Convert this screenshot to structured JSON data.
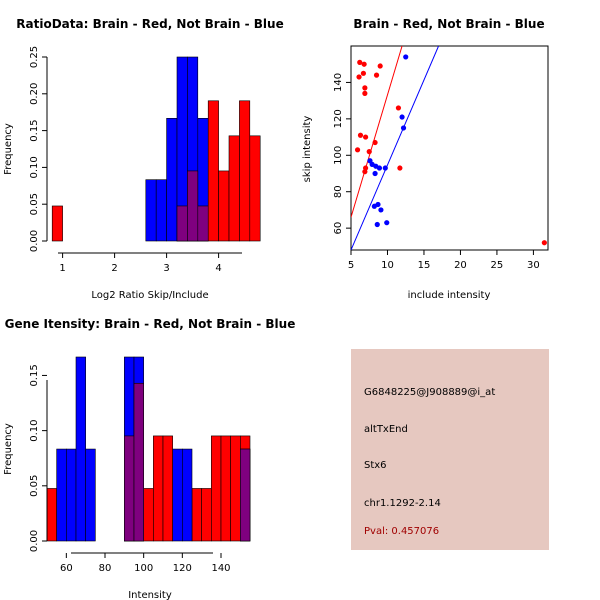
{
  "chart_data": [
    {
      "type": "histogram",
      "title": "RatioData: Brain - Red, Not Brain - Blue",
      "xlabel": "Log2 Ratio Skip/Include",
      "ylabel": "Frequency",
      "xlim": [
        0.7,
        4.7
      ],
      "ylim": [
        0,
        0.25
      ],
      "xticks": [
        "1",
        "2",
        "3",
        "4"
      ],
      "yticks": [
        "0.00",
        "0.05",
        "0.10",
        "0.15",
        "0.20",
        "0.25"
      ],
      "bin_width": 0.2,
      "series": [
        {
          "name": "Brain",
          "color": "#ff0000",
          "bars": [
            {
              "x0": 0.8,
              "v": 0.0476
            },
            {
              "x0": 3.2,
              "v": 0.0476
            },
            {
              "x0": 3.4,
              "v": 0.0952
            },
            {
              "x0": 3.6,
              "v": 0.0476
            },
            {
              "x0": 3.8,
              "v": 0.1905
            },
            {
              "x0": 4.0,
              "v": 0.0952
            },
            {
              "x0": 4.2,
              "v": 0.1429
            },
            {
              "x0": 4.4,
              "v": 0.1905
            },
            {
              "x0": 4.6,
              "v": 0.1429
            }
          ]
        },
        {
          "name": "Not Brain",
          "color": "#0000ff",
          "bars": [
            {
              "x0": 2.6,
              "v": 0.0833
            },
            {
              "x0": 2.8,
              "v": 0.0833
            },
            {
              "x0": 3.0,
              "v": 0.1667
            },
            {
              "x0": 3.2,
              "v": 0.25
            },
            {
              "x0": 3.4,
              "v": 0.25
            },
            {
              "x0": 3.6,
              "v": 0.1667
            }
          ]
        }
      ],
      "overlap_color": "#7f007f"
    },
    {
      "type": "scatter",
      "title": "Brain - Red, Not Brain - Blue",
      "xlabel": "include intensity",
      "ylabel": "skip intensity",
      "xlim": [
        5,
        32
      ],
      "ylim": [
        48,
        160
      ],
      "xticks": [
        "5",
        "10",
        "15",
        "20",
        "25",
        "30"
      ],
      "yticks": [
        "60",
        "80",
        "100",
        "120",
        "140"
      ],
      "series": [
        {
          "name": "Brain",
          "color": "#ff0000",
          "points": [
            [
              6.2,
              151
            ],
            [
              6.8,
              150
            ],
            [
              6.1,
              143
            ],
            [
              6.7,
              145
            ],
            [
              6.9,
              137
            ],
            [
              6.9,
              134
            ],
            [
              8.5,
              144
            ],
            [
              9.0,
              149
            ],
            [
              6.3,
              111
            ],
            [
              7.0,
              110
            ],
            [
              5.9,
              103
            ],
            [
              7.5,
              102
            ],
            [
              8.3,
              107
            ],
            [
              7.0,
              93
            ],
            [
              6.9,
              91
            ],
            [
              11.5,
              126
            ],
            [
              11.7,
              93
            ],
            [
              31.5,
              52
            ]
          ],
          "fit_line": [
            [
              5,
              66
            ],
            [
              12,
              160
            ]
          ]
        },
        {
          "name": "Not Brain",
          "color": "#0000ff",
          "points": [
            [
              12.5,
              154
            ],
            [
              12.0,
              121
            ],
            [
              12.2,
              115
            ],
            [
              7.6,
              97
            ],
            [
              7.9,
              95
            ],
            [
              8.4,
              94
            ],
            [
              8.9,
              93
            ],
            [
              9.7,
              93
            ],
            [
              8.3,
              90
            ],
            [
              8.2,
              72
            ],
            [
              8.7,
              73
            ],
            [
              9.1,
              70
            ],
            [
              8.6,
              62
            ],
            [
              9.9,
              63
            ]
          ],
          "fit_line": [
            [
              5,
              48
            ],
            [
              17,
              160
            ]
          ]
        }
      ]
    },
    {
      "type": "histogram",
      "title": "Gene Itensity: Brain - Red, Not Brain - Blue",
      "xlabel": "Intensity",
      "ylabel": "Frequency",
      "xlim": [
        50,
        155
      ],
      "ylim": [
        0,
        0.1667
      ],
      "xticks": [
        "60",
        "80",
        "100",
        "120",
        "140"
      ],
      "yticks": [
        "0.00",
        "0.05",
        "0.10",
        "0.15"
      ],
      "bin_width": 5,
      "series": [
        {
          "name": "Brain",
          "color": "#ff0000",
          "bars": [
            {
              "x0": 50,
              "v": 0.0476
            },
            {
              "x0": 90,
              "v": 0.0952
            },
            {
              "x0": 95,
              "v": 0.1429
            },
            {
              "x0": 100,
              "v": 0.0476
            },
            {
              "x0": 105,
              "v": 0.0952
            },
            {
              "x0": 110,
              "v": 0.0952
            },
            {
              "x0": 125,
              "v": 0.0476
            },
            {
              "x0": 130,
              "v": 0.0476
            },
            {
              "x0": 135,
              "v": 0.0952
            },
            {
              "x0": 140,
              "v": 0.0952
            },
            {
              "x0": 145,
              "v": 0.0952
            },
            {
              "x0": 150,
              "v": 0.0952
            }
          ]
        },
        {
          "name": "Not Brain",
          "color": "#0000ff",
          "bars": [
            {
              "x0": 55,
              "v": 0.0833
            },
            {
              "x0": 60,
              "v": 0.0833
            },
            {
              "x0": 65,
              "v": 0.1667
            },
            {
              "x0": 70,
              "v": 0.0833
            },
            {
              "x0": 90,
              "v": 0.1667
            },
            {
              "x0": 95,
              "v": 0.1667
            },
            {
              "x0": 115,
              "v": 0.0833
            },
            {
              "x0": 120,
              "v": 0.0833
            },
            {
              "x0": 150,
              "v": 0.0833
            }
          ]
        }
      ],
      "overlap_color": "#7f007f"
    }
  ],
  "info_panel": {
    "probe_id": "G6848225@J908889@i_at",
    "event_type": "altTxEnd",
    "gene": "Stx6",
    "location": "chr1.1292-2.14",
    "pval": "Pval: 0.457076"
  }
}
